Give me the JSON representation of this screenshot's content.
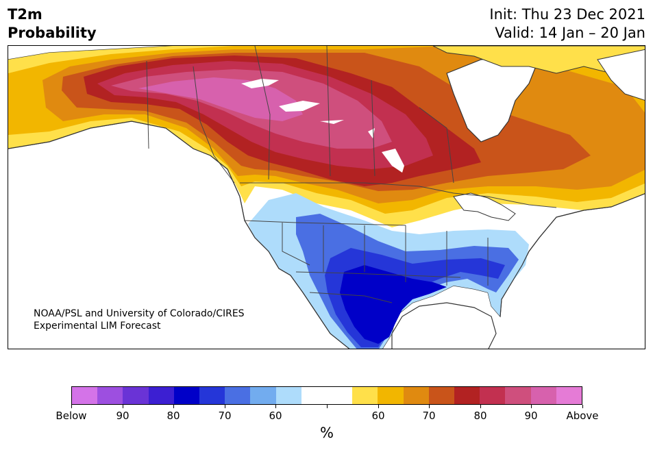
{
  "title": {
    "left_line1": "T2m",
    "left_line2": "Probability",
    "right_line1": "Init: Thu 23 Dec 2021",
    "right_line2": "Valid: 14 Jan – 20 Jan"
  },
  "credit": {
    "line1": "NOAA/PSL and University of Colorado/CIRES",
    "line2": "Experimental LIM Forecast"
  },
  "colorbar": {
    "colors": [
      "#d473e8",
      "#9d4fe0",
      "#6a33d6",
      "#3c1fd2",
      "#0000c8",
      "#2536d8",
      "#4a6fe3",
      "#72acef",
      "#aedcfb",
      "#ffffff",
      "#ffffff",
      "#ffe04a",
      "#f2b600",
      "#e08a10",
      "#c9541a",
      "#b22222",
      "#c23050",
      "#cf4f7d",
      "#d761ad",
      "#e57bd6"
    ],
    "labels": [
      "Below",
      "90",
      "80",
      "70",
      "60",
      "",
      "60",
      "70",
      "80",
      "90",
      "Above"
    ],
    "unit": "%"
  },
  "map_colors": {
    "ocean": "#ffffff",
    "land": "#ffffff",
    "border": "#333333",
    "above_50": "#ffe04a",
    "above_60": "#f2b600",
    "above_70": "#e08a10",
    "above_75": "#c9541a",
    "above_80": "#b22222",
    "above_85": "#c23050",
    "above_90": "#cf4f7d",
    "above_95": "#d761ad",
    "below_60": "#aedcfb",
    "below_65": "#72acef",
    "below_70": "#4a6fe3",
    "below_75": "#2536d8",
    "below_80": "#0000c8"
  }
}
